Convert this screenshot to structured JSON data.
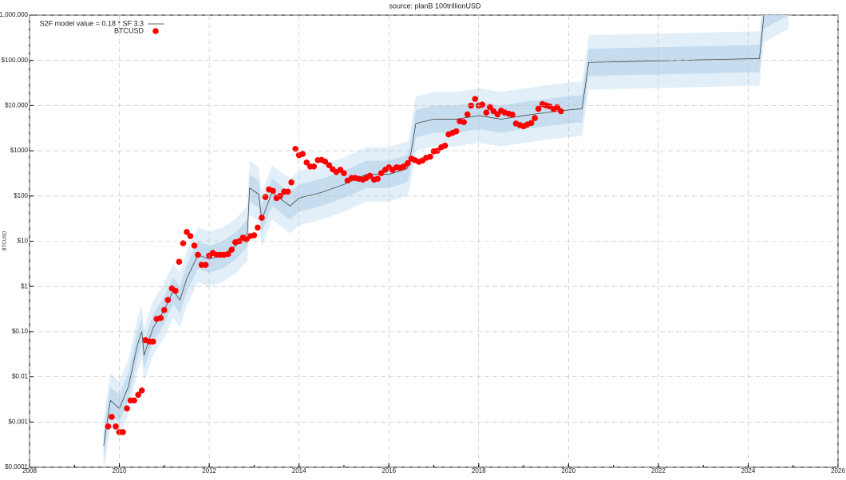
{
  "chart_data": {
    "type": "scatter-line",
    "title": "source: planB 100trillionUSD",
    "y_label": "BTCUSD",
    "log_y": true,
    "grid": true,
    "xlim": [
      2008,
      2026
    ],
    "xticks": [
      2008,
      2010,
      2012,
      2014,
      2016,
      2018,
      2020,
      2022,
      2024,
      2026
    ],
    "ylim": [
      0.0001,
      1000000
    ],
    "yticks": [
      {
        "value": 0.0001,
        "label": "$0.0001"
      },
      {
        "value": 0.001,
        "label": "$0.001"
      },
      {
        "value": 0.01,
        "label": "$0.01"
      },
      {
        "value": 0.1,
        "label": "$0.10"
      },
      {
        "value": 1,
        "label": "$1"
      },
      {
        "value": 10,
        "label": "$10"
      },
      {
        "value": 100,
        "label": "$100"
      },
      {
        "value": 1000,
        "label": "$1000"
      },
      {
        "value": 10000,
        "label": "$10.000"
      },
      {
        "value": 100000,
        "label": "$100.000"
      },
      {
        "value": 1000000,
        "label": "$1,000.000"
      }
    ],
    "model": {
      "name": "S2F model value = 0.18 * SF  3.3",
      "color": "#333333",
      "x": [
        2009.65,
        2009.8,
        2010.0,
        2010.2,
        2010.4,
        2010.5,
        2010.55,
        2010.75,
        2011.0,
        2011.2,
        2011.35,
        2011.5,
        2011.75,
        2012.0,
        2012.3,
        2012.6,
        2012.85,
        2012.9,
        2013.1,
        2013.17,
        2013.4,
        2013.8,
        2014.0,
        2014.5,
        2015.0,
        2015.5,
        2016.0,
        2016.4,
        2016.45,
        2016.6,
        2017.0,
        2017.5,
        2018.0,
        2018.5,
        2019.0,
        2019.5,
        2020.0,
        2020.3,
        2020.45,
        2024.25,
        2024.35,
        2024.9
      ],
      "values": [
        0.0003,
        0.003,
        0.002,
        0.006,
        0.05,
        0.1,
        0.03,
        0.12,
        0.3,
        0.8,
        0.5,
        1.5,
        5,
        4,
        5,
        8,
        15,
        150,
        110,
        30,
        120,
        60,
        90,
        120,
        180,
        300,
        300,
        400,
        500,
        4000,
        5000,
        5000,
        6000,
        5000,
        6000,
        7000,
        8000,
        8500,
        90000,
        110000,
        1000000,
        2000000
      ]
    },
    "bands": [
      {
        "color": "#e2eff9",
        "lower": [
          7.5e-05,
          0.00075,
          0.0005,
          0.0015,
          0.0125,
          0.025,
          0.0075,
          0.03,
          0.075,
          0.2,
          0.125,
          0.375,
          1.25,
          1,
          1.25,
          2,
          3.75,
          37.5,
          27.5,
          7.5,
          30,
          15,
          22.5,
          30,
          45,
          75,
          75,
          100,
          125,
          1000,
          1250,
          1250,
          1500,
          1250,
          1500,
          1750,
          2000,
          2125,
          22500,
          27500,
          250000,
          500000
        ],
        "upper": [
          0.0012,
          0.012,
          0.008,
          0.024,
          0.2,
          0.4,
          0.12,
          0.48,
          1.2,
          3.2,
          2,
          6,
          20,
          16,
          20,
          32,
          60,
          600,
          440,
          120,
          480,
          240,
          360,
          480,
          720,
          1200,
          1200,
          1600,
          2000,
          16000,
          20000,
          20000,
          24000,
          20000,
          24000,
          28000,
          32000,
          34000,
          360000,
          440000,
          4000000,
          8000000
        ]
      },
      {
        "color": "#c5ddee",
        "lower": [
          0.00015,
          0.0015,
          0.001,
          0.003,
          0.025,
          0.05,
          0.015,
          0.06,
          0.15,
          0.4,
          0.25,
          0.75,
          2.5,
          2,
          2.5,
          4,
          7.5,
          75,
          55,
          15,
          60,
          30,
          45,
          60,
          90,
          150,
          150,
          200,
          250,
          2000,
          2500,
          2500,
          3000,
          2500,
          3000,
          3500,
          4000,
          4250,
          45000,
          55000,
          500000,
          1000000
        ],
        "upper": [
          0.0006,
          0.006,
          0.004,
          0.012,
          0.1,
          0.2,
          0.06,
          0.24,
          0.6,
          1.6,
          1,
          3,
          10,
          8,
          10,
          16,
          30,
          300,
          220,
          60,
          240,
          120,
          180,
          240,
          360,
          600,
          600,
          800,
          1000,
          8000,
          10000,
          10000,
          12000,
          10000,
          12000,
          14000,
          16000,
          17000,
          180000,
          220000,
          2000000,
          4000000
        ]
      }
    ],
    "series": [
      {
        "name": "BTCUSD",
        "color": "#ff0000",
        "x": [
          2009.75,
          2009.83,
          2009.92,
          2010.0,
          2010.08,
          2010.17,
          2010.25,
          2010.33,
          2010.42,
          2010.5,
          2010.58,
          2010.67,
          2010.75,
          2010.83,
          2010.92,
          2011.0,
          2011.08,
          2011.17,
          2011.25,
          2011.33,
          2011.42,
          2011.5,
          2011.58,
          2011.67,
          2011.75,
          2011.83,
          2011.92,
          2012.0,
          2012.08,
          2012.17,
          2012.25,
          2012.33,
          2012.42,
          2012.5,
          2012.58,
          2012.67,
          2012.75,
          2012.83,
          2012.92,
          2013.0,
          2013.08,
          2013.17,
          2013.25,
          2013.33,
          2013.42,
          2013.5,
          2013.58,
          2013.67,
          2013.75,
          2013.83,
          2013.92,
          2014.0,
          2014.08,
          2014.17,
          2014.25,
          2014.33,
          2014.42,
          2014.5,
          2014.58,
          2014.67,
          2014.75,
          2014.83,
          2014.92,
          2015.0,
          2015.08,
          2015.17,
          2015.25,
          2015.33,
          2015.42,
          2015.5,
          2015.58,
          2015.67,
          2015.75,
          2015.83,
          2015.92,
          2016.0,
          2016.08,
          2016.17,
          2016.25,
          2016.33,
          2016.42,
          2016.5,
          2016.58,
          2016.67,
          2016.75,
          2016.83,
          2016.92,
          2017.0,
          2017.08,
          2017.17,
          2017.25,
          2017.33,
          2017.42,
          2017.5,
          2017.58,
          2017.67,
          2017.75,
          2017.83,
          2017.92,
          2018.0,
          2018.08,
          2018.17,
          2018.25,
          2018.33,
          2018.42,
          2018.5,
          2018.58,
          2018.67,
          2018.75,
          2018.83,
          2018.92,
          2019.0,
          2019.08,
          2019.17,
          2019.25,
          2019.33,
          2019.42,
          2019.5,
          2019.58,
          2019.67,
          2019.75,
          2019.83
        ],
        "values": [
          0.0008,
          0.0013,
          0.0008,
          0.0006,
          0.0006,
          0.002,
          0.003,
          0.003,
          0.004,
          0.005,
          0.065,
          0.06,
          0.06,
          0.19,
          0.2,
          0.3,
          0.5,
          0.9,
          0.8,
          3.5,
          9,
          16,
          13,
          8,
          5,
          3,
          3,
          4.8,
          5.5,
          5,
          5,
          5,
          5.2,
          6.5,
          9.5,
          10,
          12,
          11,
          13,
          13.5,
          20,
          33,
          95,
          140,
          130,
          90,
          100,
          125,
          125,
          200,
          1100,
          800,
          850,
          550,
          450,
          450,
          620,
          630,
          580,
          480,
          390,
          340,
          380,
          320,
          220,
          250,
          250,
          240,
          230,
          250,
          280,
          230,
          240,
          320,
          380,
          430,
          380,
          430,
          420,
          450,
          530,
          670,
          620,
          570,
          610,
          700,
          740,
          970,
          1000,
          1200,
          1300,
          2300,
          2500,
          2700,
          4500,
          4300,
          6400,
          10000,
          14000,
          10000,
          10500,
          7000,
          9200,
          7500,
          6400,
          7700,
          7000,
          6600,
          6300,
          4000,
          3700,
          3500,
          3800,
          4100,
          5300,
          8500,
          10800,
          10100,
          9600,
          8300,
          9200,
          7500
        ]
      }
    ]
  }
}
